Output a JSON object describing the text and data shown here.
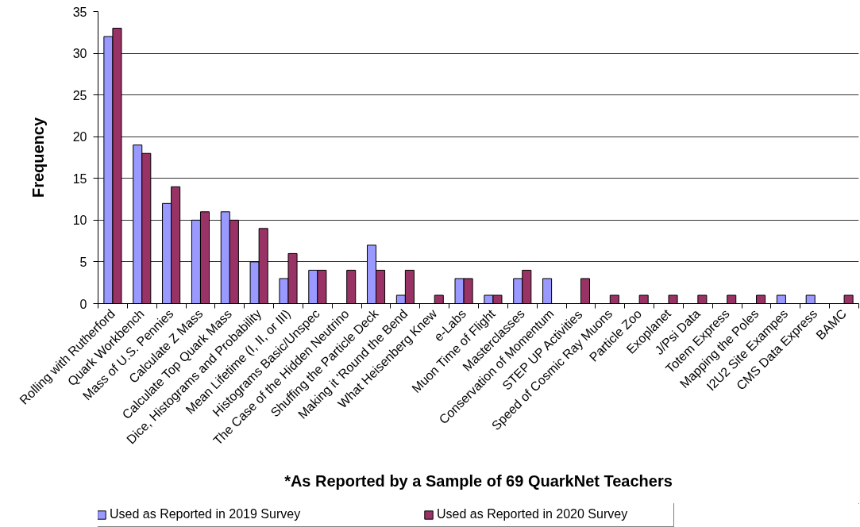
{
  "chart_data": {
    "type": "bar",
    "categories": [
      "Rolling with Rutherford",
      "Quark Workbench",
      "Mass of U.S. Pennies",
      "Calculate Z Mass",
      "Calculate Top Quark Mass",
      "Dice, Histograms and Probability",
      "Mean Lifetime (I, II, or III)",
      "Histograms Basic/Unspec",
      "The Case of the Hidden Neutrino",
      "Shuffing the Particle Deck",
      "Making it 'Round the Bend",
      "What Heisenberg Knew",
      "e-Labs",
      "Muon Time of Flight",
      "Masterclasses",
      "Conservation of Momentum",
      "STEP UP Activities",
      "Speed of Cosmic Ray Muons",
      "Particle Zoo",
      "Exoplanet",
      "J/Psi Data",
      "Totem Express",
      "Mapping the Poles",
      "I2U2 Site Exampes",
      "CMS Data Express",
      "BAMC"
    ],
    "series": [
      {
        "name": "Used as Reported in 2019 Survey",
        "color": "#9999ff",
        "values": [
          32,
          19,
          12,
          10,
          11,
          5,
          3,
          4,
          0,
          7,
          1,
          0,
          3,
          1,
          3,
          3,
          0,
          0,
          0,
          0,
          0,
          0,
          0,
          1,
          1,
          0
        ]
      },
      {
        "name": "Used as Reported in 2020 Survey",
        "color": "#993366",
        "values": [
          33,
          18,
          14,
          11,
          10,
          9,
          6,
          4,
          4,
          4,
          4,
          1,
          3,
          1,
          4,
          0,
          3,
          1,
          1,
          1,
          1,
          1,
          1,
          0,
          0,
          1
        ]
      }
    ],
    "xlabel": "*As Reported by a Sample of 69 QuarkNet Teachers",
    "ylabel": "Frequency",
    "ylim": [
      0,
      35
    ],
    "yticks": [
      0,
      5,
      10,
      15,
      20,
      25,
      30,
      35
    ],
    "grid": "y",
    "legend": "bottom"
  }
}
